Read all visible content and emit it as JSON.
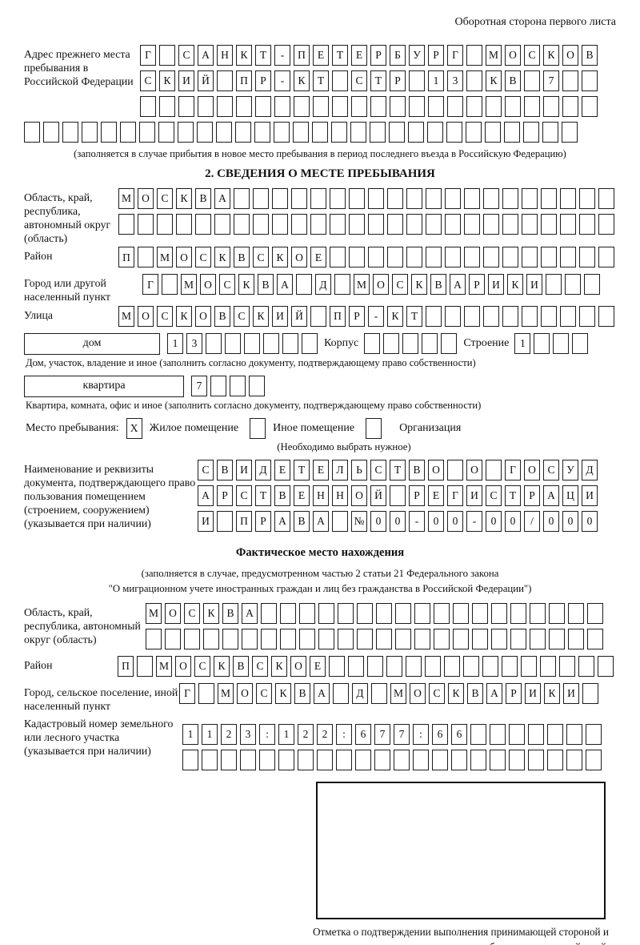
{
  "page": {
    "corner_note": "Оборотная сторона первого листа"
  },
  "prev_address": {
    "label": "Адрес прежнего места пребывания в Российской Федерации",
    "rows": [
      {
        "cells": "Г САНКТ-ПЕТЕРБУРГ МОСКОВ",
        "count": 24
      },
      {
        "cells": "СКИЙ ПР-КТ СТР 13 КВ 7",
        "count": 24
      },
      {
        "cells": "",
        "count": 24
      },
      {
        "cells": "",
        "count": 29
      }
    ],
    "note": "(заполняется в случае прибытия в новое место пребывания в период последнего въезда в Российскую Федерацию)"
  },
  "section2": {
    "title": "2. СВЕДЕНИЯ О МЕСТЕ ПРЕБЫВАНИЯ",
    "oblast": {
      "label": "Область, край, республика, автономный округ (область)",
      "rows": [
        {
          "cells": "МОСКВА",
          "count": 26
        },
        {
          "cells": "",
          "count": 26
        }
      ]
    },
    "rayon": {
      "label": "Район",
      "row": {
        "cells": "П МОСКВСКОЕ",
        "count": 26
      }
    },
    "gorod": {
      "label": "Город или другой населенный пункт",
      "row": {
        "cells": "Г МОСКВА Д МОСКВАРИКИ",
        "count": 24
      }
    },
    "ulitsa": {
      "label": "Улица",
      "row": {
        "cells": "МОСКОВСКИЙ ПР-КТ",
        "count": 26
      }
    },
    "dom": {
      "box_label": "дом",
      "number": {
        "cells": "13",
        "count": 8
      },
      "korpus_label": "Корпус",
      "korpus": {
        "cells": "",
        "count": 5
      },
      "stroenie_label": "Строение",
      "stroenie": {
        "cells": "1",
        "count": 4
      },
      "note": "Дом, участок, владение и иное (заполнить согласно документу, подтверждающему право собственности)"
    },
    "kvartira": {
      "box_label": "квартира",
      "number": {
        "cells": "7",
        "count": 4
      },
      "note": "Квартира, комната, офис и иное (заполнить согласно документу, подтверждающему право собственности)"
    },
    "place_type": {
      "label": "Место пребывания:",
      "options": [
        {
          "label": "Жилое помещение",
          "mark": "X"
        },
        {
          "label": "Иное помещение",
          "mark": ""
        },
        {
          "label": "Организация",
          "mark": ""
        }
      ],
      "note": "(Необходимо выбрать нужное)"
    },
    "document": {
      "label": "Наименование и реквизиты документа, подтверждающего право пользования помещением (строением, сооружением) (указывается при наличии)",
      "rows": [
        {
          "cells": "СВИДЕТЕЛЬСТВО О ГОСУД",
          "count": 21
        },
        {
          "cells": "АРСТВЕННОЙ РЕГИСТРАЦИ",
          "count": 21
        },
        {
          "cells": "И ПРАВА №00-00-00/000",
          "count": 21
        }
      ]
    }
  },
  "factual": {
    "title": "Фактическое место нахождения",
    "note_line1": "(заполняется в случае, предусмотренном частью 2 статьи 21 Федерального закона",
    "note_line2": "\"О миграционном учете иностранных граждан и лиц без гражданства в Российской Федерации\")",
    "oblast": {
      "label": "Область, край, республика, автономный округ (область)",
      "rows": [
        {
          "cells": "МОСКВА",
          "count": 24
        },
        {
          "cells": "",
          "count": 24
        }
      ]
    },
    "rayon": {
      "label": "Район",
      "row": {
        "cells": "П МОСКВСКОЕ",
        "count": 26
      }
    },
    "gorod": {
      "label": "Город, сельское поселение, иной населенный пункт",
      "row": {
        "cells": "Г МОСКВА Д МОСКВАРИКИ",
        "count": 22
      }
    },
    "kadastr": {
      "label": "Кадастровый номер земельного или лесного участка (указывается при наличии)",
      "rows": [
        {
          "cells": "1123:122:677:66",
          "count": 22
        },
        {
          "cells": "",
          "count": 22
        }
      ]
    },
    "stamp_caption": "Отметка о подтверждении выполнения принимающей стороной и иностранным гражданином или лицом без гражданства действий, необходимых для его постановки на учет по месту пребывания"
  }
}
